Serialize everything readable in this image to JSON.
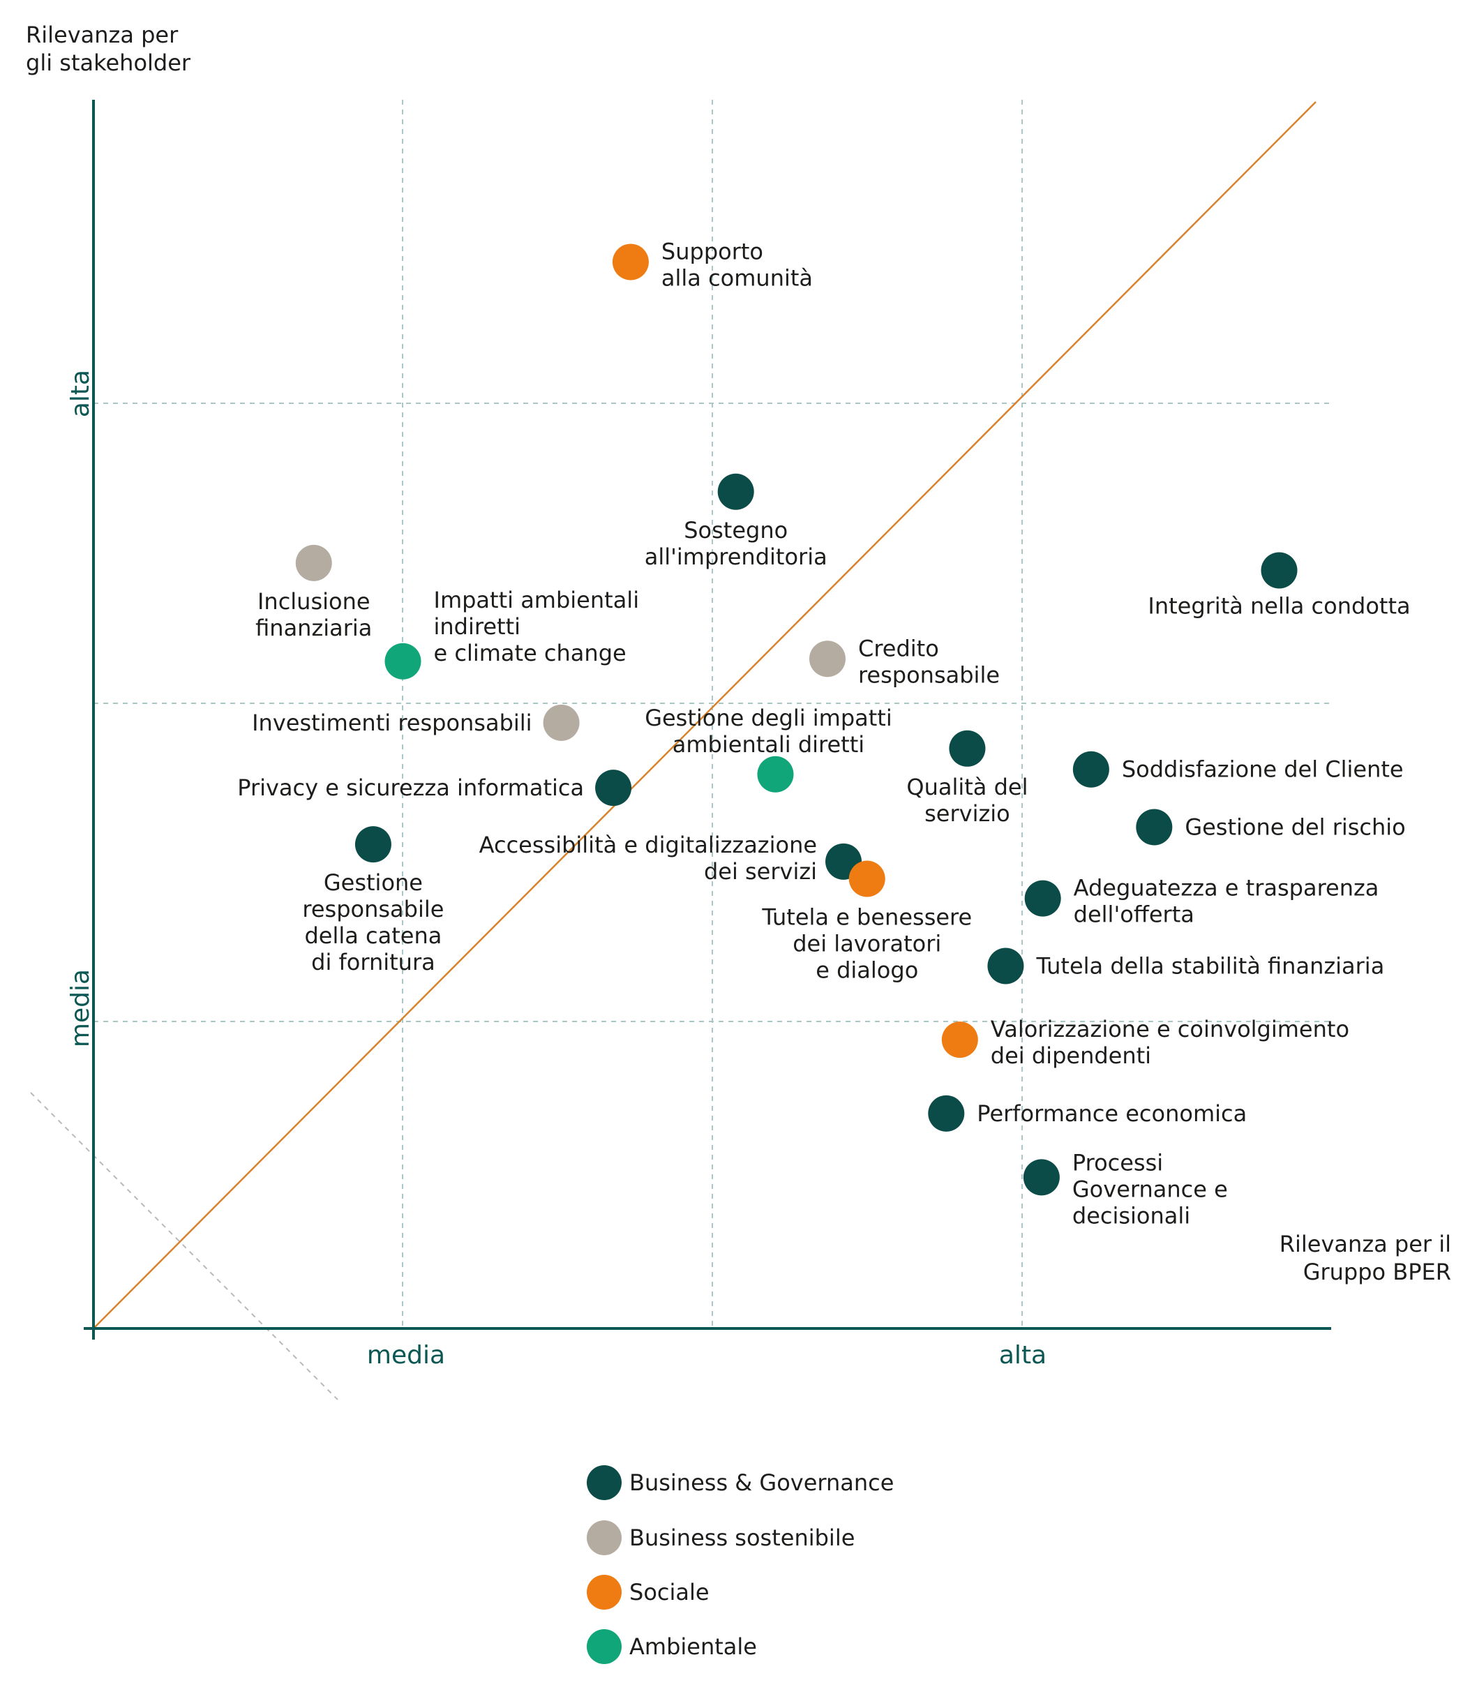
{
  "chart_data": {
    "type": "scatter",
    "title": "",
    "ylabel_lines": [
      "Rilevanza per",
      "gli stakeholder"
    ],
    "xlabel_lines": [
      "Rilevanza per il",
      "Gruppo BPER"
    ],
    "x_tick_labels": [
      "media",
      "alta"
    ],
    "y_tick_labels": [
      "alta",
      "media"
    ],
    "xlim": [
      0,
      1.0
    ],
    "ylim": [
      0,
      1.0
    ],
    "grid": true,
    "legend_position": "bottom-center",
    "categories": [
      {
        "key": "bg",
        "name": "Business & Governance",
        "color": "#0b4c48"
      },
      {
        "key": "bs",
        "name": "Business sostenibile",
        "color": "#b4aca0"
      },
      {
        "key": "so",
        "name": "Sociale",
        "color": "#ef7c13"
      },
      {
        "key": "am",
        "name": "Ambientale",
        "color": "#10a679"
      }
    ],
    "points": [
      {
        "label": [
          "Supporto",
          "alla comunità"
        ],
        "x": 0.434,
        "y": 0.868,
        "cat": "so",
        "pos": "right"
      },
      {
        "label": [
          "Sostegno",
          "all'imprenditoria"
        ],
        "x": 0.519,
        "y": 0.681,
        "cat": "bg",
        "pos": "below"
      },
      {
        "label": [
          "Inclusione",
          "finanziaria"
        ],
        "x": 0.178,
        "y": 0.623,
        "cat": "bs",
        "pos": "below"
      },
      {
        "label": [
          "Integrità nella condotta"
        ],
        "x": 0.958,
        "y": 0.617,
        "cat": "bg",
        "pos": "below"
      },
      {
        "label": [
          "Impatti ambientali",
          "indiretti",
          "e climate change"
        ],
        "x": 0.25,
        "y": 0.543,
        "cat": "am",
        "pos": "right-upper"
      },
      {
        "label": [
          "Credito",
          "responsabile"
        ],
        "x": 0.593,
        "y": 0.545,
        "cat": "bs",
        "pos": "right"
      },
      {
        "label": [
          "Investimenti responsabili"
        ],
        "x": 0.378,
        "y": 0.493,
        "cat": "bs",
        "pos": "left"
      },
      {
        "label": [
          "Gestione degli impatti",
          "ambientali diretti"
        ],
        "x": 0.551,
        "y": 0.451,
        "cat": "am",
        "pos": "above"
      },
      {
        "label": [
          "Qualità del",
          "servizio"
        ],
        "x": 0.706,
        "y": 0.472,
        "cat": "bg",
        "pos": "below"
      },
      {
        "label": [
          "Soddisfazione del Cliente"
        ],
        "x": 0.806,
        "y": 0.455,
        "cat": "bg",
        "pos": "right"
      },
      {
        "label": [
          "Privacy e sicurezza informatica"
        ],
        "x": 0.42,
        "y": 0.44,
        "cat": "bg",
        "pos": "left"
      },
      {
        "label": [
          "Gestione del rischio"
        ],
        "x": 0.857,
        "y": 0.408,
        "cat": "bg",
        "pos": "right"
      },
      {
        "label": [
          "Gestione",
          "responsabile",
          "della catena",
          "di fornitura"
        ],
        "x": 0.226,
        "y": 0.394,
        "cat": "bg",
        "pos": "below"
      },
      {
        "label": [
          "Accessibilità e digitalizzazione",
          "dei servizi"
        ],
        "x": 0.606,
        "y": 0.38,
        "cat": "bg",
        "pos": "left-upper"
      },
      {
        "label": [
          "Tutela e benessere",
          "dei lavoratori",
          "e dialogo"
        ],
        "x": 0.625,
        "y": 0.366,
        "cat": "so",
        "pos": "below"
      },
      {
        "label": [
          "Adeguatezza e trasparenza",
          "dell'offerta"
        ],
        "x": 0.767,
        "y": 0.35,
        "cat": "bg",
        "pos": "right"
      },
      {
        "label": [
          "Tutela della stabilità finanziaria"
        ],
        "x": 0.737,
        "y": 0.295,
        "cat": "bg",
        "pos": "right"
      },
      {
        "label": [
          "Valorizzazione e coinvolgimento",
          "dei dipendenti"
        ],
        "x": 0.7,
        "y": 0.235,
        "cat": "so",
        "pos": "right"
      },
      {
        "label": [
          "Performance economica"
        ],
        "x": 0.689,
        "y": 0.175,
        "cat": "bg",
        "pos": "right"
      },
      {
        "label": [
          "Processi",
          "Governance e",
          "decisionali"
        ],
        "x": 0.766,
        "y": 0.123,
        "cat": "bg",
        "pos": "right"
      }
    ]
  }
}
